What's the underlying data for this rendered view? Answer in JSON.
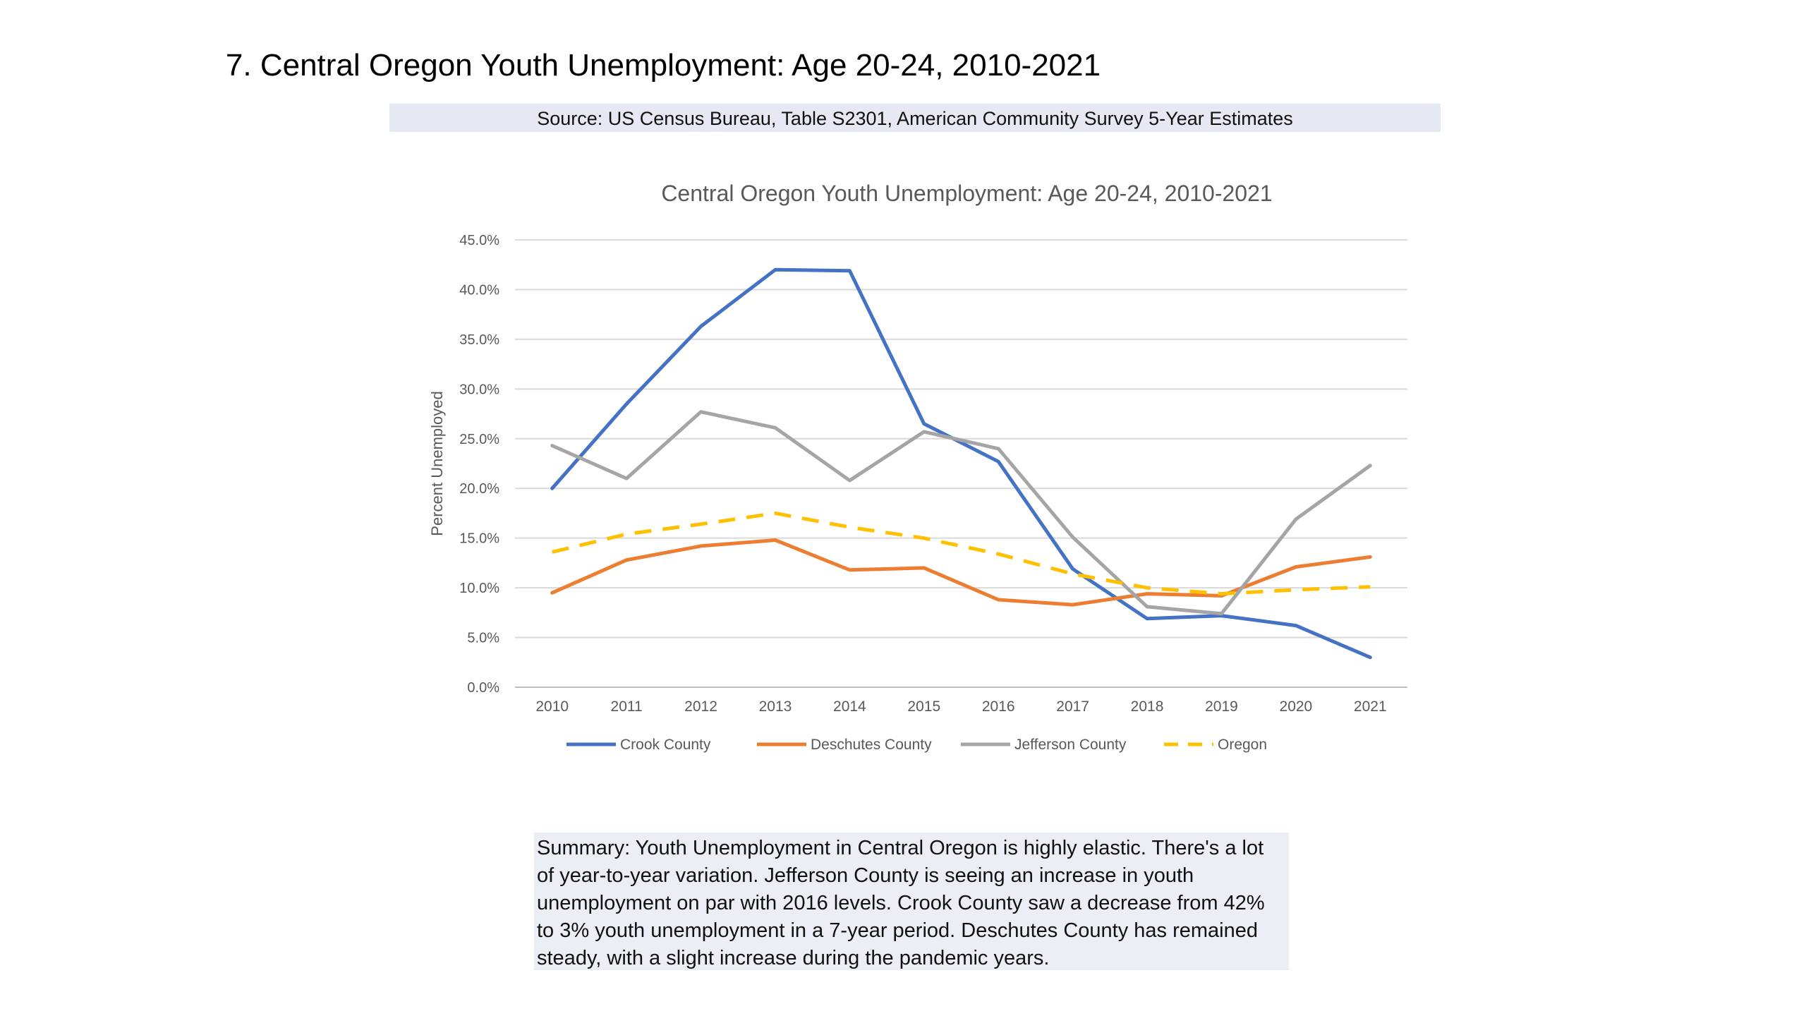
{
  "slide": {
    "title": "7. Central Oregon Youth Unemployment: Age 20-24, 2010-2021",
    "source": "Source: US Census Bureau, Table S2301, American Community Survey 5-Year Estimates",
    "summary": "Summary: Youth Unemployment in Central Oregon is highly elastic. There's a lot\nof year-to-year variation. Jefferson County is seeing an increase in youth\nunemployment on par with 2016 levels. Crook County saw a decrease from 42%\nto 3% youth unemployment in a 7-year period. Deschutes County has remained\nsteady, with a slight increase during the pandemic years."
  },
  "chart_data": {
    "type": "line",
    "title": "Central Oregon Youth Unemployment: Age 20-24, 2010-2021",
    "xlabel": "",
    "ylabel": "Percent Unemployed",
    "categories": [
      "2010",
      "2011",
      "2012",
      "2013",
      "2014",
      "2015",
      "2016",
      "2017",
      "2018",
      "2019",
      "2020",
      "2021"
    ],
    "ylim": [
      0,
      45
    ],
    "yticks": [
      "0.0%",
      "5.0%",
      "10.0%",
      "15.0%",
      "20.0%",
      "25.0%",
      "30.0%",
      "35.0%",
      "40.0%",
      "45.0%"
    ],
    "grid": true,
    "legend_position": "bottom",
    "series": [
      {
        "name": "Crook County",
        "color": "#4472c4",
        "dashed": false,
        "values": [
          20.0,
          28.5,
          36.3,
          42.0,
          41.9,
          26.5,
          22.7,
          11.9,
          6.9,
          7.2,
          6.2,
          3.0
        ]
      },
      {
        "name": "Deschutes County",
        "color": "#ed7d31",
        "dashed": false,
        "values": [
          9.5,
          12.8,
          14.2,
          14.8,
          11.8,
          12.0,
          8.8,
          8.3,
          9.4,
          9.2,
          12.1,
          13.1
        ]
      },
      {
        "name": "Jefferson County",
        "color": "#a5a5a5",
        "dashed": false,
        "values": [
          24.3,
          21.0,
          27.7,
          26.1,
          20.8,
          25.7,
          24.0,
          15.1,
          8.1,
          7.4,
          16.9,
          22.3
        ]
      },
      {
        "name": "Oregon",
        "color": "#ffc000",
        "dashed": true,
        "values": [
          13.6,
          15.4,
          16.4,
          17.5,
          16.1,
          15.0,
          13.4,
          11.4,
          10.0,
          9.4,
          9.8,
          10.1
        ]
      }
    ]
  }
}
